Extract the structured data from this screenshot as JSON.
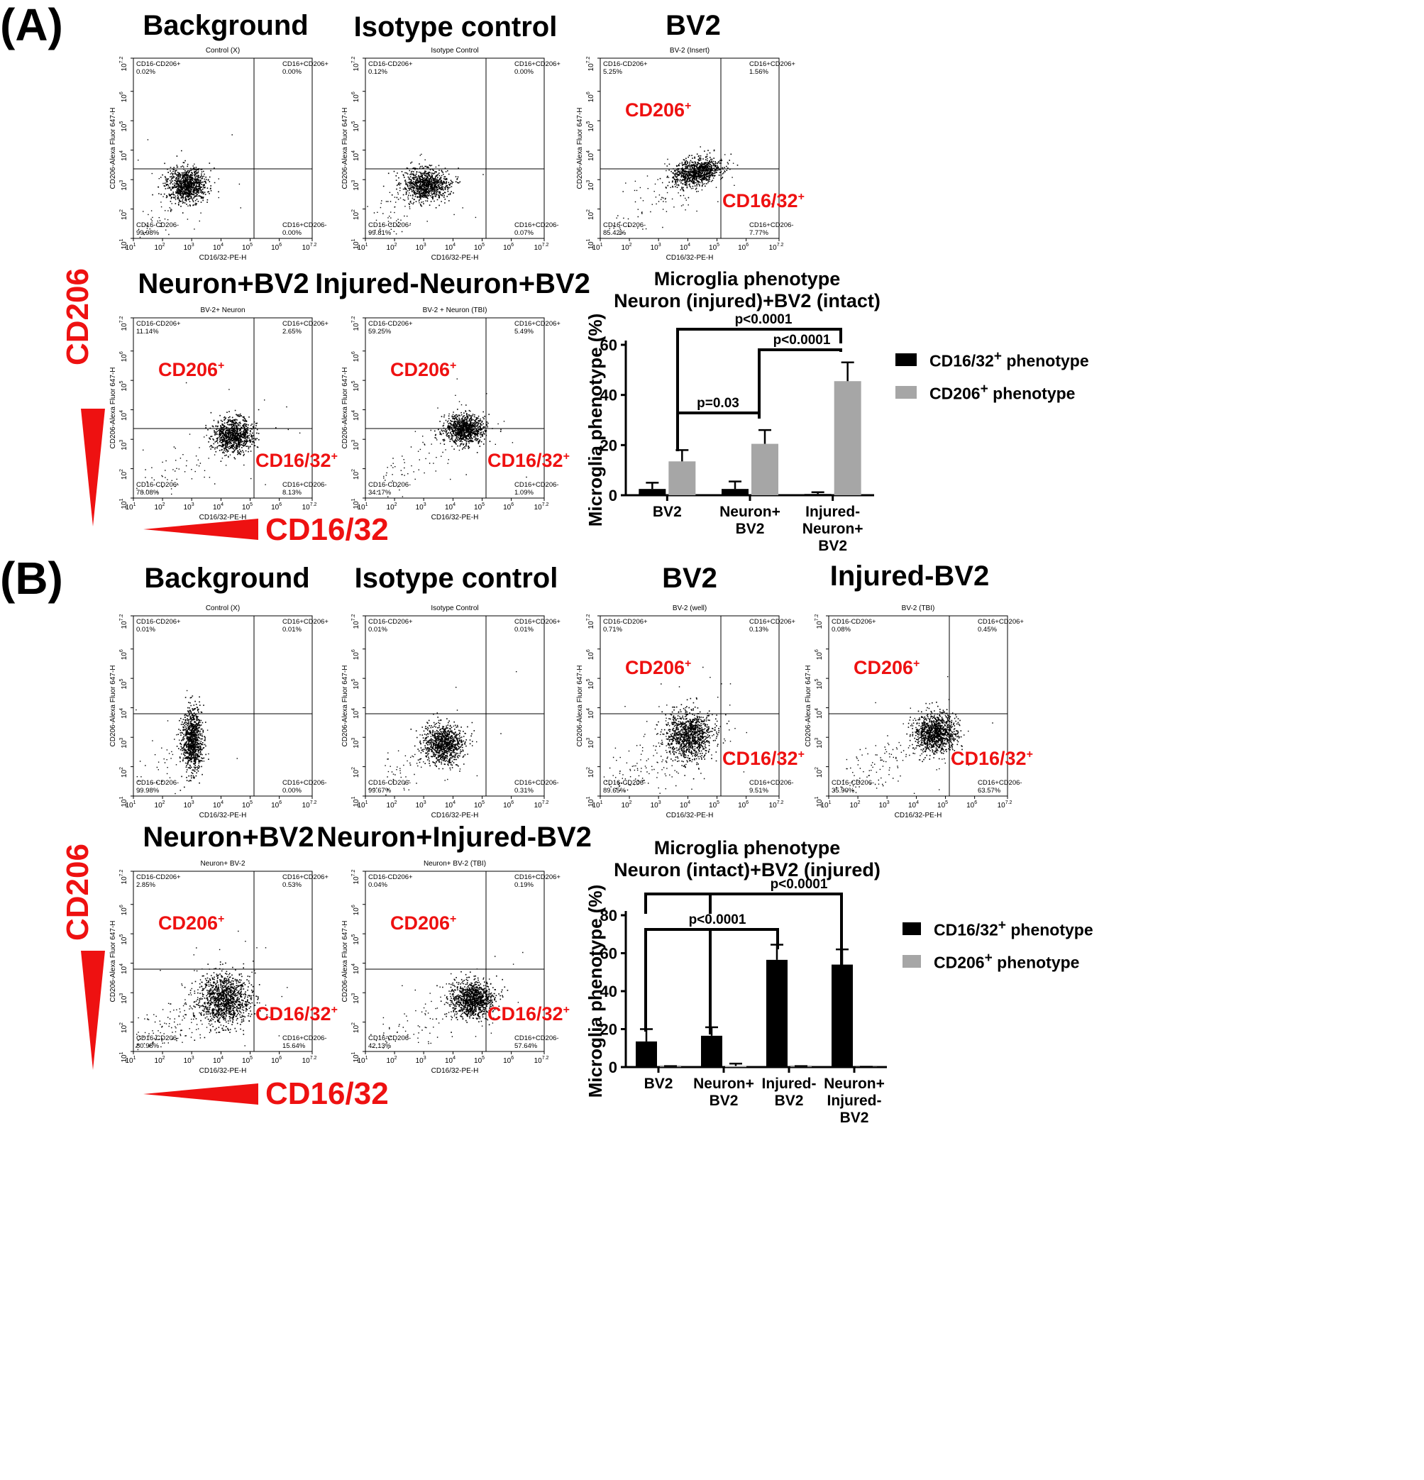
{
  "panels": {
    "a_label": "(A)",
    "b_label": "(B)"
  },
  "common": {
    "xlabel": "CD16/32-PE-H",
    "ylabel": "CD206-Alexa Fluor 647-H",
    "q_ul": "CD16-CD206+",
    "q_ur": "CD16+CD206+",
    "q_ll": "CD16-CD206-",
    "q_lr": "CD16+CD206-",
    "cd206_tag": "CD206",
    "cd1632_tag": "CD16/32",
    "sup": "+"
  },
  "axis_arrows": {
    "y_label": "CD206",
    "x_label": "CD16/32"
  },
  "flow_plots": [
    {
      "title": "Background",
      "subtitle": "Control (X)",
      "ul": "0.02%",
      "ur": "0.00%",
      "ll": "99.98%",
      "lr": "0.00%",
      "tags": false
    },
    {
      "title": "Isotype control",
      "subtitle": "Isotype Control",
      "ul": "0.12%",
      "ur": "0.00%",
      "ll": "99.81%",
      "lr": "0.07%",
      "tags": false
    },
    {
      "title": "BV2",
      "subtitle": "BV-2 (Insert)",
      "ul": "5.25%",
      "ur": "1.56%",
      "ll": "85.42%",
      "lr": "7.77%",
      "tags": true
    },
    {
      "title": "Neuron+BV2",
      "subtitle": "BV-2+ Neuron",
      "ul": "11.14%",
      "ur": "2.65%",
      "ll": "78.08%",
      "lr": "8.13%",
      "tags": true
    },
    {
      "title": "Injured-Neuron+BV2",
      "subtitle": "BV-2 + Neuron (TBI)",
      "ul": "59.25%",
      "ur": "5.49%",
      "ll": "34.17%",
      "lr": "1.09%",
      "tags": true
    },
    {
      "title": "Background",
      "subtitle": "Control (X)",
      "ul": "0.01%",
      "ur": "0.01%",
      "ll": "99.98%",
      "lr": "0.00%",
      "tags": false
    },
    {
      "title": "Isotype control",
      "subtitle": "Isotype Control",
      "ul": "0.01%",
      "ur": "0.01%",
      "ll": "99.67%",
      "lr": "0.31%",
      "tags": false
    },
    {
      "title": "BV2",
      "subtitle": "BV-2 (well)",
      "ul": "0.71%",
      "ur": "0.13%",
      "ll": "89.65%",
      "lr": "9.51%",
      "tags": true
    },
    {
      "title": "Injured-BV2",
      "subtitle": "BV-2 (TBI)",
      "ul": "0.08%",
      "ur": "0.45%",
      "ll": "35.90%",
      "lr": "63.57%",
      "tags": true
    },
    {
      "title": "Neuron+BV2",
      "subtitle": "Neuron+ BV-2",
      "ul": "2.85%",
      "ur": "0.53%",
      "ll": "80.98%",
      "lr": "15.64%",
      "tags": true
    },
    {
      "title": "Neuron+Injured-BV2",
      "subtitle": "Neuron+ BV-2 (TBI)",
      "ul": "0.04%",
      "ur": "0.19%",
      "ll": "42.13%",
      "lr": "57.64%",
      "tags": true
    }
  ],
  "chart_data": [
    {
      "type": "bar",
      "title": "Microglia phenotype",
      "subtitle": "Neuron (injured)+BV2 (intact)",
      "ylabel": "Microglia phenotype (%)",
      "ylim": [
        0,
        60
      ],
      "yticks": [
        "0",
        "20",
        "40",
        "60"
      ],
      "categories": [
        [
          "BV2"
        ],
        [
          "Neuron+",
          "BV2"
        ],
        [
          "Injured-",
          "Neuron+",
          "BV2"
        ]
      ],
      "series": [
        {
          "name": "CD16/32+ phenotype",
          "label": "CD16/32",
          "color": "#000000",
          "values": [
            2.5,
            2.5,
            0.5
          ],
          "errors": [
            2.5,
            3.0,
            0.7
          ]
        },
        {
          "name": "CD206+ phenotype",
          "label": "CD206",
          "color": "#a6a6a6",
          "values": [
            13.5,
            20.5,
            45.5
          ],
          "errors": [
            4.5,
            5.5,
            7.5
          ]
        }
      ],
      "legend_sup": "+",
      "legend_suffix": " phenotype",
      "legend_position": "right",
      "significance": [
        {
          "label": "p<0.0001"
        },
        {
          "label": "p<0.0001"
        },
        {
          "label": "p=0.03"
        }
      ]
    },
    {
      "type": "bar",
      "title": "Microglia phenotype",
      "subtitle": "Neuron (intact)+BV2 (injured)",
      "ylabel": "Microglia phenotype (%)",
      "ylim": [
        0,
        80
      ],
      "yticks": [
        "0",
        "20",
        "40",
        "60",
        "80"
      ],
      "categories": [
        [
          "BV2"
        ],
        [
          "Neuron+",
          "BV2"
        ],
        [
          "Injured-",
          "BV2"
        ],
        [
          "Neuron+",
          "Injured-",
          "BV2"
        ]
      ],
      "series": [
        {
          "name": "CD16/32+ phenotype",
          "label": "CD16/32",
          "color": "#000000",
          "values": [
            13.5,
            16.5,
            56.5,
            54
          ],
          "errors": [
            6.5,
            4.5,
            8,
            8
          ]
        },
        {
          "name": "CD206+ phenotype",
          "label": "CD206",
          "color": "#a6a6a6",
          "values": [
            0.3,
            0.6,
            0.3,
            0.1
          ],
          "errors": [
            0.2,
            1.2,
            0.2,
            0.1
          ]
        }
      ],
      "legend_sup": "+",
      "legend_suffix": " phenotype",
      "legend_position": "right",
      "significance": [
        {
          "label": "p<0.0001"
        },
        {
          "label": "p<0.0001"
        }
      ]
    }
  ]
}
